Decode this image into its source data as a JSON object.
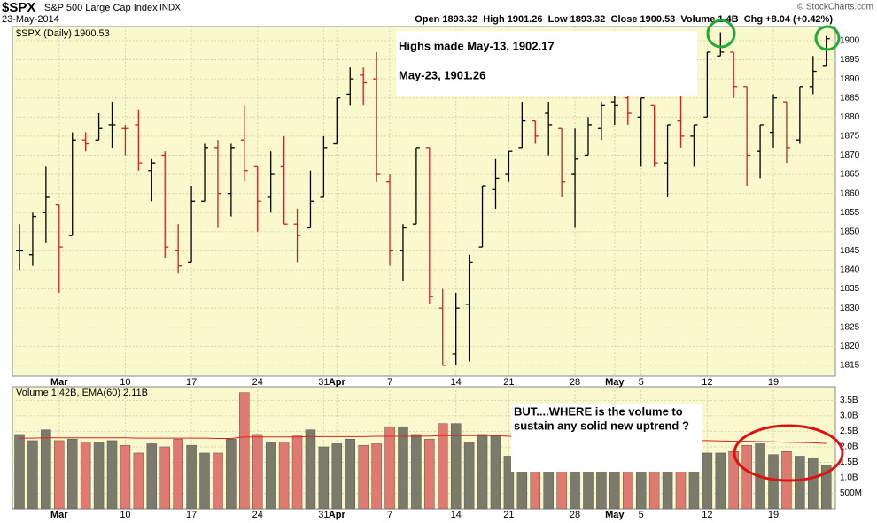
{
  "header": {
    "symbol": "$SPX",
    "name": "S&P 500 Large Cap Index",
    "exchange": "INDX",
    "date": "23-May-2014",
    "quote": "Open 1893.32  High 1901.26  Low 1893.32  Close 1900.53  Volume 1.4B  Chg +8.04 (+0.42%)",
    "source": "© StockCharts.com"
  },
  "annotations": {
    "price_note": [
      "Highs made May-13, 1902.17",
      "May-23, 1901.26"
    ],
    "volume_note": [
      "BUT....WHERE is the volume to",
      "sustain any solid new uptrend ?"
    ]
  },
  "chart_data": [
    {
      "type": "ohlc",
      "legend": "$SPX (Daily) 1900.53",
      "up_color": "#000000",
      "down_color": "#cc2222",
      "background": "#faf8cd",
      "grid": true,
      "categories": [
        null,
        null,
        null,
        "Mar",
        null,
        null,
        null,
        null,
        "10",
        null,
        null,
        null,
        null,
        "17",
        null,
        null,
        null,
        null,
        "24",
        null,
        null,
        null,
        null,
        "31",
        "Apr",
        null,
        null,
        null,
        "7",
        null,
        null,
        null,
        null,
        "14",
        null,
        null,
        null,
        "21",
        null,
        null,
        null,
        null,
        "28",
        null,
        null,
        "May",
        null,
        "5",
        null,
        null,
        null,
        null,
        "12",
        null,
        null,
        null,
        null,
        "19",
        null,
        null,
        null,
        null
      ],
      "open": [
        1845,
        1844,
        1855,
        1857,
        1849,
        1874,
        1874,
        1878,
        1877,
        1878,
        1866,
        1870,
        1845,
        1842,
        1858,
        1872,
        1860,
        1874,
        1867,
        1859,
        1867,
        1852,
        1851,
        1859,
        1873,
        1886,
        1891,
        1890,
        1863,
        1845,
        1852,
        1872,
        1830,
        1818,
        1831,
        1846,
        1861,
        1865,
        1872,
        1879,
        1881,
        1877,
        1865,
        1870,
        1877,
        1884,
        1885,
        1880,
        1883,
        1868,
        1879,
        1875,
        1880,
        1896,
        1897,
        1888,
        1871,
        1876,
        1884,
        1874,
        1888,
        1893.32
      ],
      "high": [
        1852,
        1855,
        1867,
        1857,
        1876,
        1876,
        1881,
        1884,
        1878,
        1882,
        1869,
        1871,
        1852,
        1862,
        1873,
        1874,
        1873,
        1883,
        1867,
        1871,
        1875,
        1856,
        1866,
        1875,
        1885,
        1893,
        1893,
        1897,
        1865,
        1852,
        1872,
        1872,
        1835,
        1834,
        1844,
        1862,
        1869,
        1871,
        1884,
        1879,
        1884,
        1877,
        1877,
        1880,
        1884,
        1888,
        1891,
        1885,
        1883,
        1878,
        1889,
        1878,
        1897,
        1902.17,
        1897,
        1888,
        1878,
        1886,
        1884,
        1888,
        1896,
        1901.26
      ],
      "low": [
        1840,
        1841,
        1847,
        1834,
        1849,
        1871,
        1874,
        1872,
        1870,
        1866,
        1858,
        1843,
        1839,
        1842,
        1858,
        1851,
        1854,
        1863,
        1850,
        1855,
        1852,
        1842,
        1851,
        1859,
        1873,
        1883,
        1883,
        1863,
        1841,
        1837,
        1852,
        1831,
        1815,
        1815,
        1816,
        1846,
        1856,
        1863,
        1872,
        1873,
        1870,
        1859,
        1851,
        1870,
        1874,
        1878,
        1878,
        1867,
        1867,
        1859,
        1872,
        1867,
        1880,
        1896,
        1885,
        1862,
        1864,
        1872,
        1868,
        1873,
        1886,
        1893.32
      ],
      "close": [
        1845,
        1854,
        1859,
        1846,
        1874,
        1873,
        1877,
        1878,
        1877,
        1868,
        1868,
        1846,
        1841,
        1858,
        1872,
        1860,
        1872,
        1866,
        1858,
        1865,
        1852,
        1849,
        1858,
        1872,
        1885,
        1890,
        1889,
        1865,
        1845,
        1851,
        1872,
        1833,
        1815,
        1830,
        1842,
        1862,
        1864,
        1871,
        1879,
        1875,
        1878,
        1863,
        1869,
        1878,
        1883,
        1883,
        1881,
        1885,
        1868,
        1878,
        1875,
        1878,
        1897,
        1897,
        1888,
        1870,
        1878,
        1885,
        1872,
        1888,
        1892,
        1900.53
      ],
      "ylim": [
        1812.2,
        1903.7
      ],
      "yticks": [
        1815,
        1820,
        1825,
        1830,
        1835,
        1840,
        1845,
        1850,
        1855,
        1860,
        1865,
        1870,
        1875,
        1880,
        1885,
        1890,
        1895,
        1900
      ]
    },
    {
      "type": "bar",
      "legend": "Volume 1.42B, EMA(60) 2.11B",
      "up_color": "#7b7b6b",
      "down_color": "#e07a70",
      "ema_color": "#dd2222",
      "values": [
        2.4,
        2.2,
        2.55,
        2.2,
        2.25,
        2.15,
        2.15,
        2.2,
        2.05,
        1.8,
        2.1,
        2.0,
        2.25,
        2.05,
        1.8,
        1.8,
        2.25,
        3.75,
        2.4,
        2.15,
        2.15,
        2.35,
        2.55,
        2.0,
        2.1,
        2.25,
        2.05,
        2.1,
        2.65,
        2.65,
        2.4,
        2.25,
        2.75,
        2.75,
        2.15,
        2.4,
        2.35,
        1.7,
        1.9,
        1.8,
        1.8,
        1.85,
        2.0,
        1.75,
        1.8,
        1.75,
        1.7,
        1.6,
        1.8,
        1.85,
        1.75,
        1.65,
        1.8,
        1.8,
        1.85,
        2.05,
        2.1,
        1.75,
        1.85,
        1.7,
        1.65,
        1.42
      ],
      "ema": [
        2.28,
        2.28,
        2.29,
        2.29,
        2.29,
        2.29,
        2.29,
        2.29,
        2.29,
        2.28,
        2.28,
        2.28,
        2.28,
        2.28,
        2.28,
        2.27,
        2.27,
        2.32,
        2.32,
        2.32,
        2.32,
        2.32,
        2.33,
        2.33,
        2.33,
        2.33,
        2.33,
        2.34,
        2.34,
        2.34,
        2.34,
        2.35,
        2.36,
        2.36,
        2.36,
        2.36,
        2.36,
        2.34,
        2.33,
        2.32,
        2.31,
        2.3,
        2.29,
        2.28,
        2.27,
        2.26,
        2.25,
        2.24,
        2.23,
        2.22,
        2.21,
        2.2,
        2.2,
        2.19,
        2.18,
        2.18,
        2.17,
        2.16,
        2.15,
        2.14,
        2.13,
        2.11
      ],
      "ylim": [
        0,
        3.94
      ],
      "yticks": [
        {
          "value": 0.5,
          "label": "500M"
        },
        {
          "value": 1.0,
          "label": "1.0B"
        },
        {
          "value": 1.5,
          "label": "1.5B"
        },
        {
          "value": 2.0,
          "label": "2.0B"
        },
        {
          "value": 2.5,
          "label": "2.5B"
        },
        {
          "value": 3.0,
          "label": "3.0B"
        },
        {
          "value": 3.5,
          "label": "3.5B"
        }
      ]
    }
  ]
}
